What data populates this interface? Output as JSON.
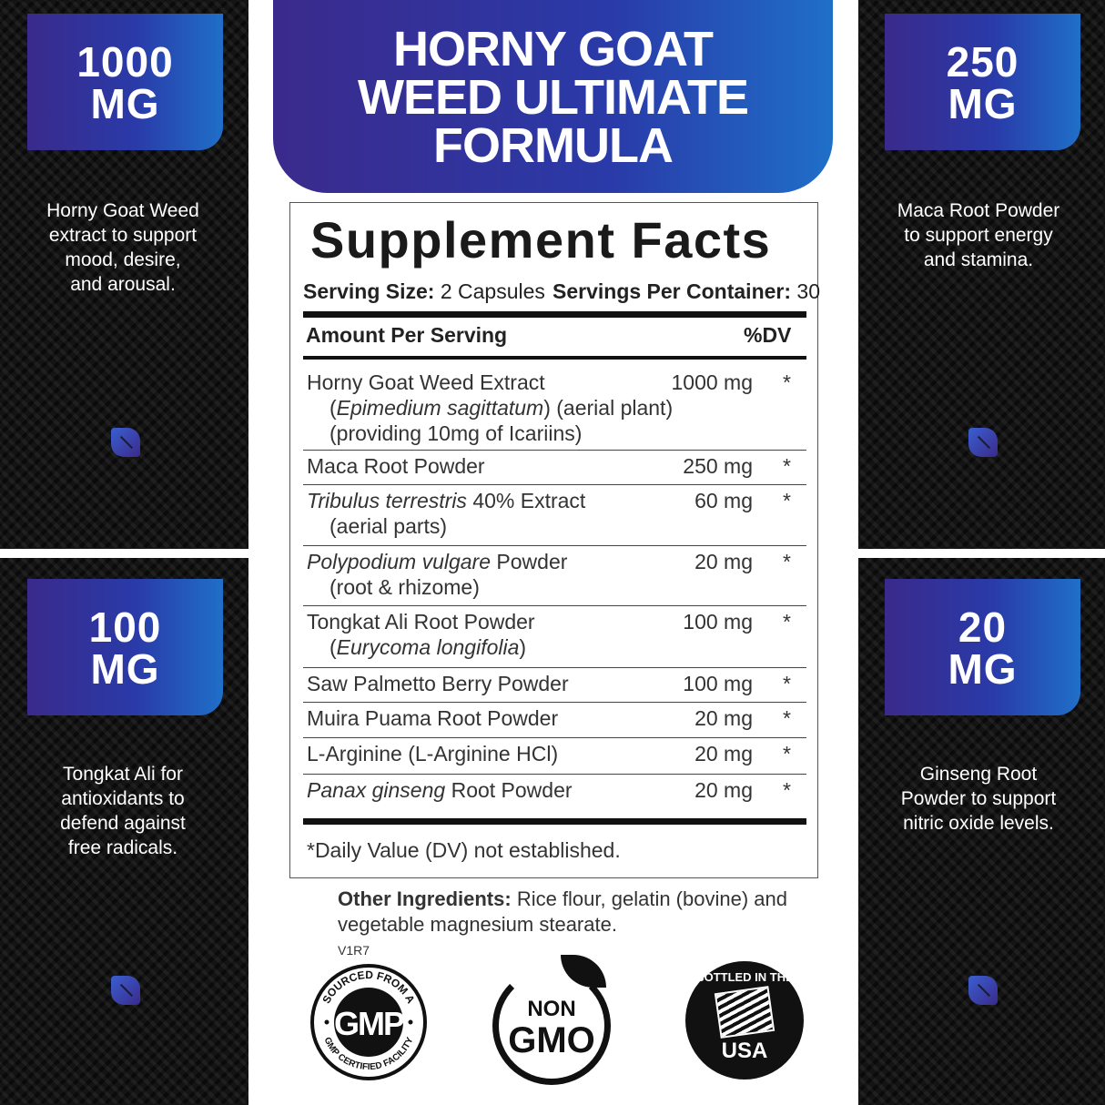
{
  "title": "HORNY GOAT WEED ULTIMATE FORMULA",
  "title_lines": [
    "HORNY GOAT",
    "WEED ULTIMATE",
    "FORMULA"
  ],
  "callouts": [
    {
      "amount": "1000",
      "unit": "MG",
      "text": [
        "Horny Goat Weed",
        "extract to support",
        "mood, desire,",
        "and arousal."
      ]
    },
    {
      "amount": "250",
      "unit": "MG",
      "text": [
        "Maca Root Powder",
        "to support energy",
        "and stamina."
      ]
    },
    {
      "amount": "100",
      "unit": "MG",
      "text": [
        "Tongkat Ali for",
        "antioxidants to",
        "defend against",
        "free radicals."
      ]
    },
    {
      "amount": "20",
      "unit": "MG",
      "text": [
        "Ginseng Root",
        "Powder to support",
        "nitric oxide levels."
      ]
    }
  ],
  "facts": {
    "heading": "Supplement Facts",
    "serving_size_label": "Serving Size:",
    "serving_size": "2 Capsules",
    "servings_label": "Servings Per Container:",
    "servings": "30",
    "amount_header": "Amount Per Serving",
    "dv_header": "%DV",
    "rows": [
      {
        "lines": [
          [
            {
              "t": "Horny Goat Weed Extract"
            }
          ],
          [
            {
              "t": "(",
              "i": false
            },
            {
              "t": "Epimedium sagittatum",
              "i": true
            },
            {
              "t": ") (aerial plant)"
            }
          ],
          [
            {
              "t": "(providing 10mg of Icariins)"
            }
          ]
        ],
        "amount": "1000 mg",
        "dv": "*"
      },
      {
        "lines": [
          [
            {
              "t": "Maca Root Powder"
            }
          ]
        ],
        "amount": "250 mg",
        "dv": "*"
      },
      {
        "lines": [
          [
            {
              "t": "Tribulus terrestris",
              "i": true
            },
            {
              "t": " 40% Extract"
            }
          ],
          [
            {
              "t": "(aerial parts)"
            }
          ]
        ],
        "amount": "60 mg",
        "dv": "*"
      },
      {
        "lines": [
          [
            {
              "t": "Polypodium vulgare",
              "i": true
            },
            {
              "t": " Powder"
            }
          ],
          [
            {
              "t": "(root & rhizome)"
            }
          ]
        ],
        "amount": "20 mg",
        "dv": "*"
      },
      {
        "lines": [
          [
            {
              "t": "Tongkat Ali Root Powder"
            }
          ],
          [
            {
              "t": "("
            },
            {
              "t": "Eurycoma longifolia",
              "i": true
            },
            {
              "t": ")"
            }
          ]
        ],
        "amount": "100 mg",
        "dv": "*"
      },
      {
        "lines": [
          [
            {
              "t": "Saw Palmetto Berry Powder"
            }
          ]
        ],
        "amount": "100 mg",
        "dv": "*"
      },
      {
        "lines": [
          [
            {
              "t": "Muira Puama Root Powder"
            }
          ]
        ],
        "amount": "20 mg",
        "dv": "*"
      },
      {
        "lines": [
          [
            {
              "t": "L-Arginine (L-Arginine HCl)"
            }
          ]
        ],
        "amount": "20 mg",
        "dv": "*"
      },
      {
        "lines": [
          [
            {
              "t": "Panax ginseng",
              "i": true
            },
            {
              "t": " Root Powder"
            }
          ]
        ],
        "amount": "20 mg",
        "dv": "*"
      }
    ],
    "footnote": "*Daily Value (DV) not established."
  },
  "other_ingredients_label": "Other Ingredients:",
  "other_ingredients": "Rice flour, gelatin (bovine) and",
  "other_ingredients_2": "vegetable magnesium stearate.",
  "version": "V1R7",
  "seals": {
    "gmp": {
      "top": "SOURCED FROM A",
      "center": "GMP",
      "bottom": "GMP CERTIFIED FACILITY"
    },
    "gmo": {
      "line1": "NON",
      "line2": "GMO"
    },
    "usa": {
      "top": "BOTTLED IN THE",
      "bottom": "USA"
    }
  },
  "colors": {
    "gradient_start": "#3a2a8c",
    "gradient_end": "#1f6fc8",
    "panel": "#141414"
  }
}
